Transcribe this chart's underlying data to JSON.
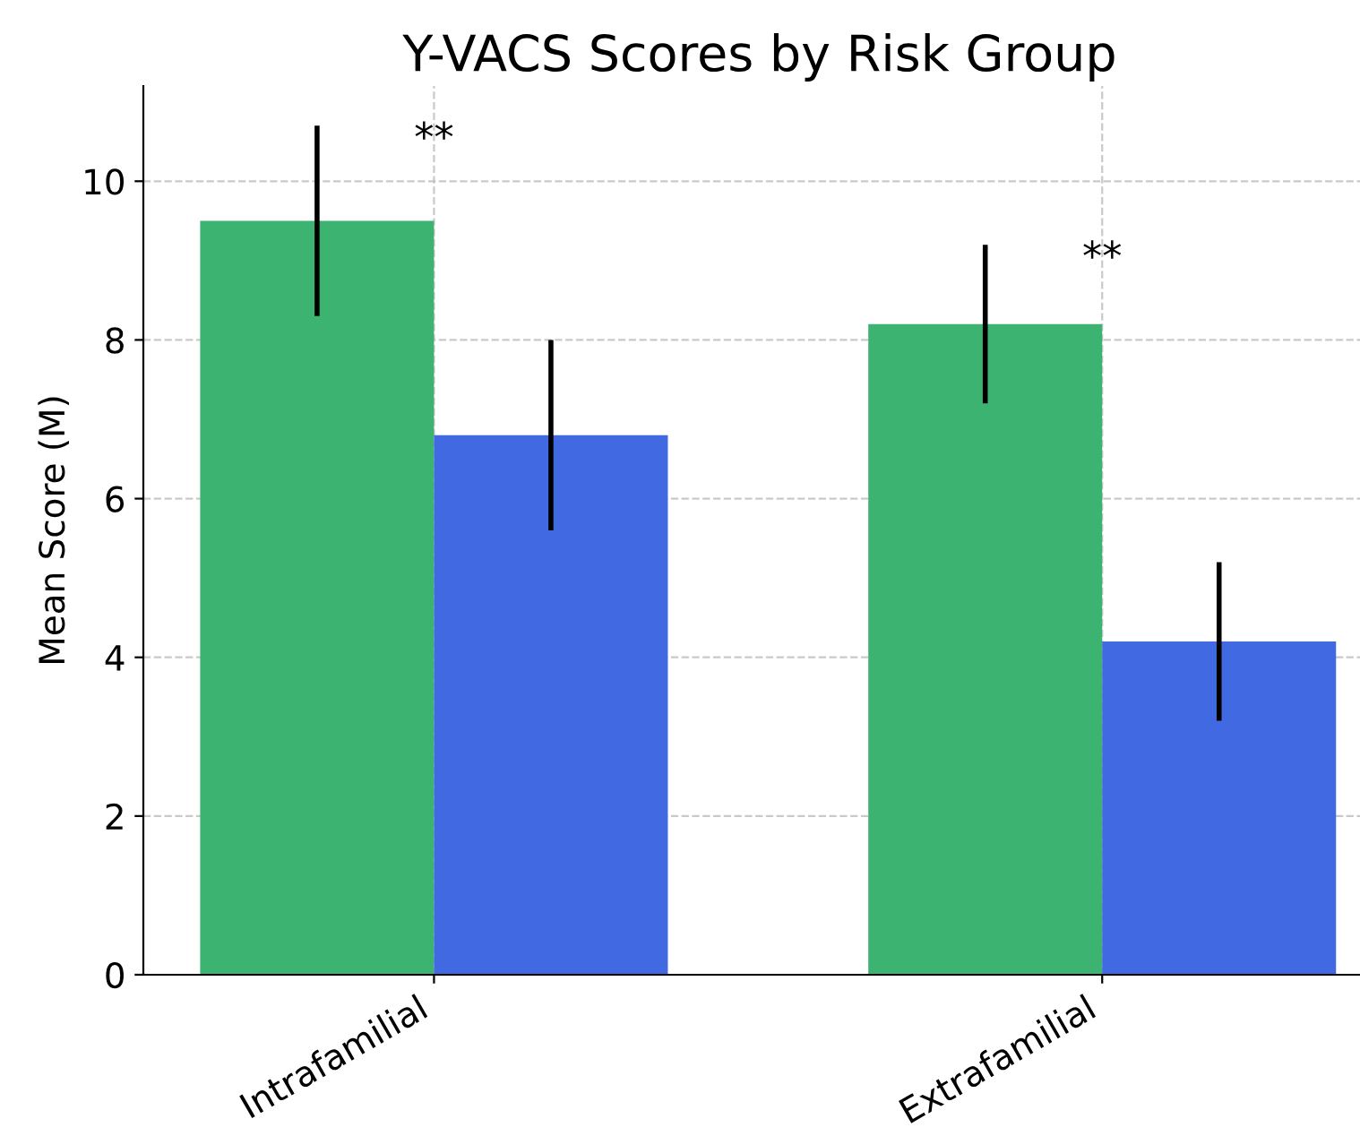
{
  "chart_data": {
    "type": "bar",
    "title": "Y-VACS Scores by Risk Group",
    "ylabel": "Mean Score (M)",
    "categories": [
      "Intrafamilial",
      "Extrafamilial"
    ],
    "series": [
      {
        "color": "#3cb371",
        "values": [
          9.5,
          8.2
        ],
        "errors": [
          1.2,
          1.0
        ]
      },
      {
        "color": "#4169e1",
        "values": [
          6.8,
          4.2
        ],
        "errors": [
          1.2,
          1.0
        ]
      }
    ],
    "ylim": [
      0,
      11.2
    ],
    "yticks": [
      0,
      2,
      4,
      6,
      8,
      10
    ],
    "grid": true,
    "annotations": [
      "**",
      "**"
    ]
  }
}
